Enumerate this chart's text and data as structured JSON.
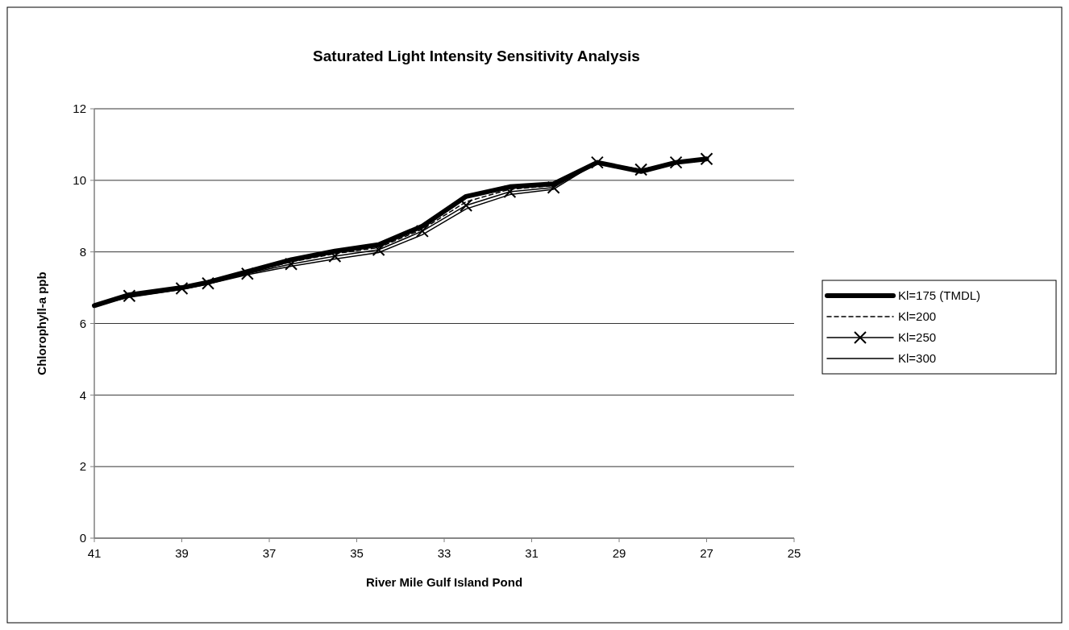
{
  "chart_data": {
    "type": "line",
    "title": "Saturated Light Intensity Sensitivity Analysis",
    "xlabel": "River Mile Gulf Island Pond",
    "ylabel": "Chlorophyll-a ppb",
    "x": [
      41,
      40.2,
      39,
      38.4,
      37.5,
      36.5,
      35.5,
      34.5,
      33.5,
      32.5,
      31.5,
      30.5,
      29.5,
      28.5,
      27.7,
      27
    ],
    "series": [
      {
        "name": "Kl=175 (TMDL)",
        "color": "#000000",
        "line_style": "solid",
        "marker": "none",
        "values": [
          6.5,
          6.8,
          7.0,
          7.15,
          7.45,
          7.78,
          8.02,
          8.2,
          8.72,
          9.55,
          9.82,
          9.9,
          10.5,
          10.25,
          10.5,
          10.6
        ]
      },
      {
        "name": "Kl=200",
        "color": "#000000",
        "line_style": "dashed",
        "marker": "none",
        "values": [
          6.5,
          6.77,
          6.98,
          7.13,
          7.42,
          7.72,
          7.95,
          8.12,
          8.63,
          9.4,
          9.75,
          9.85,
          10.5,
          10.27,
          10.5,
          10.6
        ]
      },
      {
        "name": "Kl=250",
        "color": "#000000",
        "line_style": "solid",
        "marker": "cross",
        "x": [
          40.2,
          39,
          38.4,
          37.5,
          36.5,
          35.5,
          34.5,
          33.5,
          32.5,
          31.5,
          30.5,
          29.5,
          28.5,
          27.7,
          27
        ],
        "values": [
          6.77,
          6.98,
          7.12,
          7.39,
          7.66,
          7.88,
          8.06,
          8.58,
          9.3,
          9.68,
          9.8,
          10.5,
          10.3,
          10.5,
          10.6
        ]
      },
      {
        "name": "Kl=300",
        "color": "#000000",
        "line_style": "solid",
        "marker": "none",
        "values": [
          6.5,
          6.73,
          6.95,
          7.1,
          7.36,
          7.6,
          7.8,
          7.98,
          8.48,
          9.2,
          9.6,
          9.75,
          10.5,
          10.3,
          10.5,
          10.6
        ]
      }
    ],
    "xlim": [
      41,
      25
    ],
    "xticks": [
      41,
      39,
      37,
      35,
      33,
      31,
      29,
      27,
      25
    ],
    "ylim": [
      0,
      12
    ],
    "yticks": [
      0,
      2,
      4,
      6,
      8,
      10,
      12
    ],
    "grid": "y",
    "legend": "right"
  }
}
